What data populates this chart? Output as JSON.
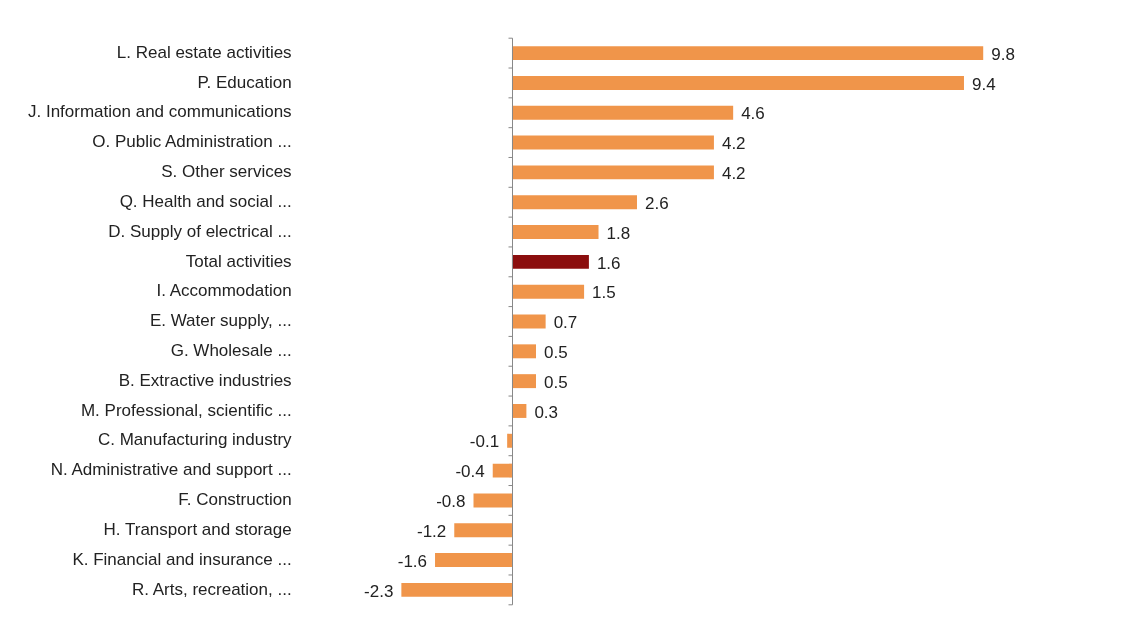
{
  "chart_data": {
    "type": "bar",
    "orientation": "horizontal",
    "categories": [
      "L. Real estate activities",
      "P. Education",
      "J. Information and communications",
      "O. Public Administration ...",
      "S. Other services",
      "Q. Health and social ...",
      "D. Supply of electrical ...",
      "Total activities",
      "I. Accommodation",
      "E. Water supply, ...",
      "G. Wholesale ...",
      "B. Extractive industries",
      "M. Professional, scientific ...",
      "C. Manufacturing industry",
      "N. Administrative and support ...",
      "F. Construction",
      "H. Transport and storage",
      "K. Financial and insurance ...",
      "R. Arts, recreation, ..."
    ],
    "values": [
      9.8,
      9.4,
      4.6,
      4.2,
      4.2,
      2.6,
      1.8,
      1.6,
      1.5,
      0.7,
      0.5,
      0.5,
      0.3,
      -0.1,
      -0.4,
      -0.8,
      -1.2,
      -1.6,
      -2.3
    ],
    "colors": [
      "#f0954a",
      "#f0954a",
      "#f0954a",
      "#f0954a",
      "#f0954a",
      "#f0954a",
      "#f0954a",
      "#8b0e0e",
      "#f0954a",
      "#f0954a",
      "#f0954a",
      "#f0954a",
      "#f0954a",
      "#f0954a",
      "#f0954a",
      "#f0954a",
      "#f0954a",
      "#f0954a",
      "#f0954a"
    ],
    "data_labels": true
  }
}
